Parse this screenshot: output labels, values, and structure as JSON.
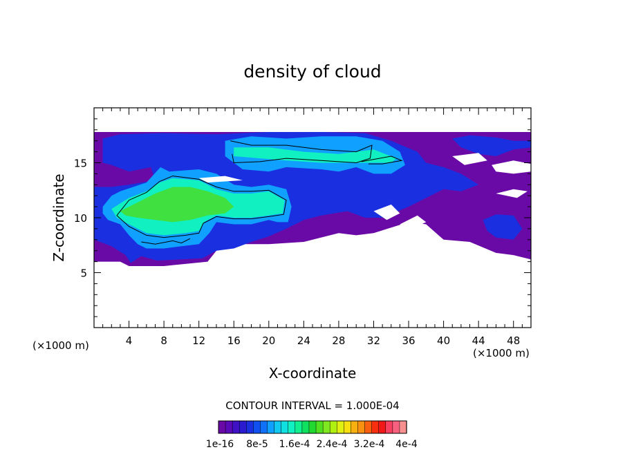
{
  "chart_data": {
    "type": "heatmap",
    "title": "density of cloud",
    "xlabel": "X-coordinate",
    "ylabel": "Z-coordinate",
    "x_unit": "(×1000 m)",
    "y_unit": "(×1000 m)",
    "xlim": [
      0,
      50
    ],
    "ylim": [
      0,
      20
    ],
    "x_ticks": [
      4,
      8,
      12,
      16,
      20,
      24,
      28,
      32,
      36,
      40,
      44,
      48
    ],
    "y_ticks": [
      5,
      10,
      15
    ],
    "contour_interval_text": "CONTOUR INTERVAL = 1.000E-04",
    "colorbar": {
      "colors": [
        "#6a0aa6",
        "#5a0ab8",
        "#4010c4",
        "#2a1ad0",
        "#1a30e0",
        "#1050f0",
        "#1070f8",
        "#10a0ff",
        "#10c8f0",
        "#10e0e0",
        "#10f0c0",
        "#10f090",
        "#10e060",
        "#20d830",
        "#50e020",
        "#80e820",
        "#b0f010",
        "#e0f010",
        "#f8e010",
        "#f8b010",
        "#f89010",
        "#f86010",
        "#f83010",
        "#f01818",
        "#f84060",
        "#f86080",
        "#f89090"
      ],
      "tick_labels": [
        "1e-16",
        "8e-5",
        "1.6e-4",
        "2.4e-4",
        "3.2e-4",
        "4e-4"
      ]
    },
    "levels": [
      {
        "name": "level-1e-16",
        "color": "#6a0aa6",
        "regions": [
          [
            [
              0,
              6
            ],
            [
              3,
              6
            ],
            [
              4,
              5.6
            ],
            [
              8,
              5.6
            ],
            [
              13,
              6
            ],
            [
              14,
              7
            ],
            [
              17,
              7.6
            ],
            [
              20,
              7.6
            ],
            [
              24,
              7.8
            ],
            [
              28,
              8.6
            ],
            [
              30,
              8.4
            ],
            [
              32,
              8.6
            ],
            [
              36,
              9.6
            ],
            [
              38,
              9.4
            ],
            [
              40,
              8
            ],
            [
              43,
              7.8
            ],
            [
              46,
              6.8
            ],
            [
              48,
              6.6
            ],
            [
              50,
              6.2
            ],
            [
              50,
              17.8
            ],
            [
              0,
              17.8
            ]
          ]
        ]
      },
      {
        "name": "level-4e-5",
        "color": "#1a30e0",
        "regions": [
          [
            [
              0,
              8
            ],
            [
              2,
              7.4
            ],
            [
              3.6,
              6.6
            ],
            [
              4.2,
              5.9
            ],
            [
              5.4,
              6.5
            ],
            [
              7.2,
              6.1
            ],
            [
              12.4,
              6.3
            ],
            [
              14,
              7
            ],
            [
              16,
              7.2
            ],
            [
              18,
              7.8
            ],
            [
              20,
              8.3
            ],
            [
              22,
              9
            ],
            [
              24,
              9.8
            ],
            [
              26,
              10.2
            ],
            [
              29,
              10.6
            ],
            [
              31,
              10
            ],
            [
              33,
              10
            ],
            [
              36,
              11
            ],
            [
              38,
              11.8
            ],
            [
              40,
              12.6
            ],
            [
              42,
              12.4
            ],
            [
              44,
              13
            ],
            [
              42,
              14
            ],
            [
              40,
              14.6
            ],
            [
              38,
              15
            ],
            [
              37,
              16
            ],
            [
              34,
              17
            ],
            [
              31,
              17.7
            ],
            [
              26,
              17.8
            ],
            [
              20,
              17.8
            ],
            [
              14,
              17.6
            ],
            [
              8,
              17.7
            ],
            [
              3,
              17.6
            ],
            [
              1,
              17.2
            ],
            [
              1,
              15
            ],
            [
              2,
              14.8
            ],
            [
              4,
              14.2
            ],
            [
              6.5,
              14.6
            ],
            [
              7,
              13.4
            ],
            [
              4,
              13
            ],
            [
              2,
              12.8
            ],
            [
              0,
              12.8
            ]
          ],
          [
            [
              41,
              17.2
            ],
            [
              43,
              17.5
            ],
            [
              46,
              17.3
            ],
            [
              48,
              17
            ],
            [
              50,
              17
            ],
            [
              50,
              16.4
            ],
            [
              48,
              16.2
            ],
            [
              46,
              15.6
            ],
            [
              44,
              15.8
            ],
            [
              42,
              16.4
            ]
          ],
          [
            [
              44.5,
              9.8
            ],
            [
              46,
              10.3
            ],
            [
              48,
              10.2
            ],
            [
              49,
              9
            ],
            [
              48,
              8
            ],
            [
              46,
              8.2
            ],
            [
              45,
              8.8
            ]
          ]
        ]
      },
      {
        "name": "level-8e-5",
        "color": "#10a0ff",
        "regions": [
          [
            [
              1,
              11
            ],
            [
              2,
              12
            ],
            [
              3,
              12.4
            ],
            [
              6,
              13.2
            ],
            [
              7.6,
              14.6
            ],
            [
              8.6,
              14.2
            ],
            [
              12,
              14.4
            ],
            [
              14,
              14
            ],
            [
              16,
              13
            ],
            [
              18,
              12.8
            ],
            [
              20,
              13
            ],
            [
              22,
              12.6
            ],
            [
              22.6,
              11
            ],
            [
              22.2,
              9.6
            ],
            [
              21,
              9.6
            ],
            [
              20,
              9.8
            ],
            [
              18,
              9.4
            ],
            [
              16,
              9.4
            ],
            [
              14,
              9.6
            ],
            [
              13.2,
              8.6
            ],
            [
              12,
              7.6
            ],
            [
              10,
              7.4
            ],
            [
              8,
              7.2
            ],
            [
              6,
              7.2
            ],
            [
              5,
              7.6
            ],
            [
              4,
              8.4
            ],
            [
              3,
              9.4
            ],
            [
              1.6,
              9.8
            ],
            [
              1,
              10.4
            ]
          ],
          [
            [
              15,
              17
            ],
            [
              18,
              17.4
            ],
            [
              22,
              17.2
            ],
            [
              26,
              17.4
            ],
            [
              30,
              17.4
            ],
            [
              33,
              17
            ],
            [
              35,
              16
            ],
            [
              35.6,
              14.8
            ],
            [
              34,
              14
            ],
            [
              32,
              14
            ],
            [
              30,
              14.6
            ],
            [
              28,
              14.2
            ],
            [
              26,
              14.4
            ],
            [
              22,
              14.6
            ],
            [
              20,
              14.2
            ],
            [
              17,
              14.4
            ],
            [
              15,
              15.6
            ]
          ]
        ]
      },
      {
        "name": "level-1.2e-4",
        "color": "#10f0c0",
        "regions": [
          [
            [
              2,
              10.8
            ],
            [
              4,
              11.8
            ],
            [
              6,
              12.4
            ],
            [
              7.5,
              13.2
            ],
            [
              9,
              13.6
            ],
            [
              12,
              13.4
            ],
            [
              14,
              12.6
            ],
            [
              16,
              12.2
            ],
            [
              18,
              12.2
            ],
            [
              20,
              12.4
            ],
            [
              21.8,
              11.6
            ],
            [
              21.6,
              10.4
            ],
            [
              20,
              10.2
            ],
            [
              18,
              10
            ],
            [
              16,
              10
            ],
            [
              14,
              10.2
            ],
            [
              12.6,
              9.6
            ],
            [
              12,
              8.8
            ],
            [
              10.5,
              8.6
            ],
            [
              8,
              8.4
            ],
            [
              6,
              8.6
            ],
            [
              4,
              9.4
            ],
            [
              2.6,
              10
            ]
          ],
          [
            [
              16,
              16.4
            ],
            [
              20,
              16.4
            ],
            [
              24,
              16
            ],
            [
              28,
              15.8
            ],
            [
              32,
              16.2
            ],
            [
              34.6,
              15.4
            ],
            [
              34,
              15
            ],
            [
              30,
              15
            ],
            [
              26,
              15
            ],
            [
              22,
              15.2
            ],
            [
              19,
              15.4
            ],
            [
              16,
              15.6
            ]
          ]
        ]
      },
      {
        "name": "level-1.6e-4",
        "color": "#40e040",
        "regions": [
          [
            [
              3,
              10.6
            ],
            [
              5,
              11.4
            ],
            [
              7,
              12.2
            ],
            [
              9,
              12.8
            ],
            [
              11,
              12.8
            ],
            [
              13,
              12.4
            ],
            [
              15,
              11.8
            ],
            [
              16,
              11
            ],
            [
              15,
              10.4
            ],
            [
              13,
              10.2
            ],
            [
              11,
              9.8
            ],
            [
              9,
              9.6
            ],
            [
              7,
              9.8
            ],
            [
              5,
              10
            ],
            [
              3.6,
              10.2
            ]
          ]
        ]
      }
    ],
    "clear_regions": [
      [
        [
          12,
          13.6
        ],
        [
          15,
          13.8
        ],
        [
          17,
          13.4
        ],
        [
          13,
          13.2
        ]
      ],
      [
        [
          32,
          10.6
        ],
        [
          34,
          11.2
        ],
        [
          35,
          10.4
        ],
        [
          33.5,
          9.8
        ]
      ],
      [
        [
          35,
          9.4
        ],
        [
          37,
          10.2
        ],
        [
          38,
          9.6
        ],
        [
          36.4,
          9
        ]
      ],
      [
        [
          41,
          15.6
        ],
        [
          44,
          15.9
        ],
        [
          45,
          15.2
        ],
        [
          42.4,
          14.8
        ]
      ],
      [
        [
          45.5,
          14.8
        ],
        [
          48,
          15.2
        ],
        [
          50,
          14.9
        ],
        [
          50,
          14.2
        ],
        [
          48,
          14
        ],
        [
          46,
          14.2
        ]
      ],
      [
        [
          46,
          12.2
        ],
        [
          48,
          12.6
        ],
        [
          49.6,
          12.4
        ],
        [
          48.4,
          11.8
        ]
      ]
    ],
    "contours": [
      [
        [
          2.6,
          10.2
        ],
        [
          4,
          11.6
        ],
        [
          6,
          12.3
        ],
        [
          7.5,
          13.3
        ],
        [
          9,
          13.8
        ],
        [
          12,
          13.5
        ],
        [
          14,
          12.8
        ],
        [
          16,
          12.4
        ],
        [
          18,
          12.4
        ],
        [
          20,
          12.5
        ],
        [
          22,
          11.6
        ],
        [
          21.7,
          10.3
        ],
        [
          20,
          10.1
        ],
        [
          18,
          9.9
        ],
        [
          16,
          9.9
        ],
        [
          14,
          10.1
        ],
        [
          12.5,
          9.5
        ],
        [
          12,
          8.6
        ],
        [
          10.5,
          8.4
        ],
        [
          8,
          8.2
        ],
        [
          6,
          8.4
        ],
        [
          4,
          9.2
        ],
        [
          2.6,
          10.2
        ]
      ],
      [
        [
          15.6,
          17
        ],
        [
          18,
          16.6
        ],
        [
          22,
          16.6
        ],
        [
          26,
          16.2
        ],
        [
          30,
          16
        ],
        [
          31.8,
          16.6
        ],
        [
          31.6,
          15.4
        ],
        [
          30,
          15
        ],
        [
          26,
          15.2
        ],
        [
          22,
          15.4
        ],
        [
          19,
          15.1
        ],
        [
          16,
          15
        ],
        [
          15.8,
          15.8
        ]
      ],
      [
        [
          30.6,
          15.1
        ],
        [
          34,
          15.6
        ],
        [
          35.2,
          15.2
        ],
        [
          33,
          14.9
        ],
        [
          31.4,
          14.9
        ]
      ],
      [
        [
          5.4,
          7.8
        ],
        [
          7,
          7.6
        ],
        [
          9,
          7.9
        ],
        [
          10,
          7.7
        ],
        [
          11,
          8.1
        ]
      ]
    ]
  }
}
